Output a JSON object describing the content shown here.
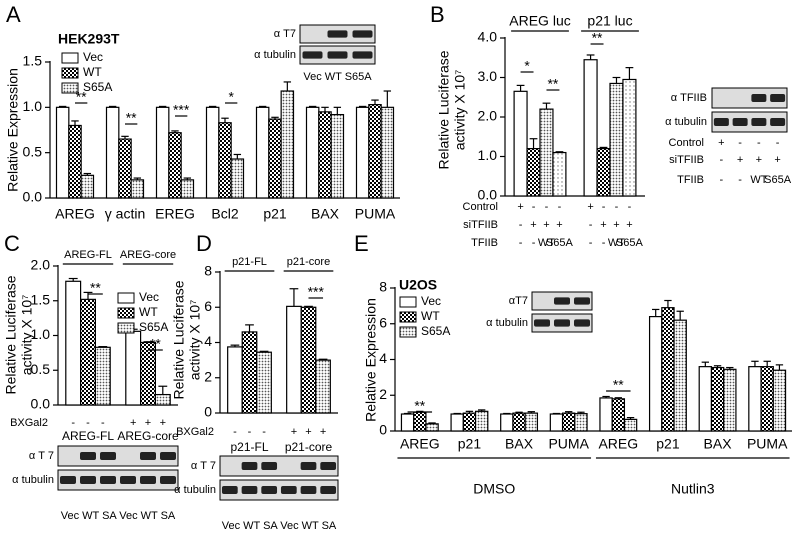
{
  "chart_data": [
    {
      "type": "bar",
      "letter": "A",
      "cell_line": "HEK293T",
      "y_label": [
        "Relative Expression"
      ],
      "categories": [
        "AREG",
        "γ actin",
        "EREG",
        "Bcl2",
        "p21",
        "BAX",
        "PUMA"
      ],
      "series": [
        {
          "name": "Vec",
          "pattern": "none",
          "values": [
            1.0,
            1.0,
            1.0,
            1.0,
            1.0,
            1.0,
            1.0
          ],
          "errors": [
            0.01,
            0.01,
            0.01,
            0.01,
            0.01,
            0.01,
            0.01
          ]
        },
        {
          "name": "WT",
          "pattern": "checker",
          "values": [
            0.8,
            0.65,
            0.72,
            0.83,
            0.87,
            0.95,
            1.03
          ],
          "errors": [
            0.05,
            0.03,
            0.02,
            0.05,
            0.02,
            0.05,
            0.05
          ]
        },
        {
          "name": "S65A",
          "pattern": "dots",
          "values": [
            0.25,
            0.2,
            0.2,
            0.43,
            1.18,
            0.92,
            1.0
          ],
          "errors": [
            0.02,
            0.02,
            0.02,
            0.05,
            0.1,
            0.08,
            0.18
          ]
        }
      ],
      "ylim": [
        0,
        1.5
      ],
      "yticks": [
        {
          "value": 0,
          "label": "0.0"
        },
        0.5,
        {
          "value": 1,
          "label": "1.0"
        },
        1.5
      ],
      "annotations": [
        "**",
        "**",
        "***",
        "*"
      ],
      "blot": {
        "rows": [
          "α T7",
          "α tubulin"
        ],
        "lanes": "Vec WT S65A"
      }
    },
    {
      "type": "bar",
      "letter": "B",
      "y_label": [
        "Relative Luciferase",
        "activity X 10⁷"
      ],
      "categories": [
        "AREG luc",
        "p21 luc"
      ],
      "series": [
        {
          "pattern": "none",
          "values": [
            2.65,
            3.45
          ],
          "errors": [
            0.15,
            0.12
          ]
        },
        {
          "pattern": "checker",
          "values": [
            1.2,
            1.2
          ],
          "errors": [
            0.25,
            0.03
          ]
        },
        {
          "pattern": "dots",
          "values": [
            2.2,
            2.85
          ],
          "errors": [
            0.15,
            0.15
          ]
        },
        {
          "pattern": "sparse",
          "values": [
            1.1,
            2.95
          ],
          "errors": [
            0.02,
            0.3
          ]
        }
      ],
      "ylim": [
        0,
        4
      ],
      "yticks": [
        {
          "value": 0,
          "label": "0.0"
        },
        {
          "value": 1,
          "label": "1.0"
        },
        {
          "value": 2,
          "label": "2.0"
        },
        {
          "value": 3,
          "label": "3.0"
        },
        {
          "value": 4,
          "label": "4.0"
        }
      ],
      "annotations": [
        "*",
        "**",
        "**"
      ],
      "conditions": [
        {
          "label": "Control",
          "marks": [
            "+",
            "-",
            "-",
            "-",
            "+",
            "-",
            "-",
            "-"
          ]
        },
        {
          "label": "siTFIIB",
          "marks": [
            "-",
            "+",
            "+",
            "+",
            "-",
            "+",
            "+",
            "+"
          ]
        },
        {
          "label": "TFIIB",
          "marks": [
            "-",
            "-",
            "WT",
            "S65A",
            "-",
            "-",
            "WT",
            "S65A"
          ]
        }
      ],
      "blot": {
        "rows": [
          "α TFIIB",
          "α tubulin"
        ],
        "conditions": [
          {
            "label": "Control",
            "marks": [
              "+",
              "-",
              "-",
              "-"
            ]
          },
          {
            "label": "siTFIIB",
            "marks": [
              "-",
              "+",
              "+",
              "+"
            ]
          },
          {
            "label": "TFIIB",
            "marks": [
              "-",
              "-",
              "WT",
              "S65A"
            ]
          }
        ]
      }
    },
    {
      "type": "bar",
      "letter": "C",
      "y_label": [
        "Relative Luciferase",
        "activity X 10⁷"
      ],
      "categories": [
        "AREG-FL",
        "AREG-core"
      ],
      "series": [
        {
          "name": "Vec",
          "pattern": "none",
          "values": [
            1.78,
            1.06
          ],
          "errors": [
            0.04,
            0.03
          ]
        },
        {
          "name": "WT",
          "pattern": "checker",
          "values": [
            1.52,
            0.9
          ],
          "errors": [
            0.1,
            0.01
          ]
        },
        {
          "name": "S65A",
          "pattern": "dots",
          "values": [
            0.83,
            0.15
          ],
          "errors": [
            0.01,
            0.12
          ]
        }
      ],
      "ylim": [
        0,
        2
      ],
      "yticks": [
        {
          "value": 0,
          "label": "0.0"
        },
        0.5,
        {
          "value": 1,
          "label": "1.0"
        },
        1.5,
        {
          "value": 2,
          "label": "2.0"
        }
      ],
      "annotations": [
        "**",
        "**"
      ],
      "conditions": [
        {
          "label": "BXGal2",
          "marks": [
            "-",
            "-",
            "-",
            "+",
            "+",
            "+"
          ]
        }
      ],
      "blot": {
        "rows": [
          "α T 7",
          "α tubulin"
        ],
        "lanes": "Vec WT SA Vec WT SA"
      }
    },
    {
      "type": "bar",
      "letter": "D",
      "y_label": [
        "Relative Luciferase",
        "activity X 10⁷"
      ],
      "categories": [
        "p21-FL",
        "p21-core"
      ],
      "series": [
        {
          "pattern": "none",
          "values": [
            3.75,
            6.05
          ],
          "errors": [
            0.1,
            1.0
          ]
        },
        {
          "pattern": "checker",
          "values": [
            4.6,
            6.0
          ],
          "errors": [
            0.4,
            0.05
          ]
        },
        {
          "pattern": "dots",
          "values": [
            3.45,
            3.0
          ],
          "errors": [
            0.05,
            0.05
          ]
        }
      ],
      "ylim": [
        0,
        8
      ],
      "yticks": [
        0,
        2,
        4,
        6,
        8
      ],
      "annotations": [
        "***"
      ],
      "conditions": [
        {
          "label": "BXGal2",
          "marks": [
            "-",
            "-",
            "-",
            "+",
            "+",
            "+"
          ]
        }
      ],
      "blot": {
        "rows": [
          "α T 7",
          "α tubulin"
        ],
        "lanes": "Vec WT SA Vec WT SA"
      }
    },
    {
      "type": "bar",
      "letter": "E",
      "cell_line": "U2OS",
      "y_label": [
        "Relative Expression"
      ],
      "categories": [
        "AREG",
        "p21",
        "BAX",
        "PUMA",
        "AREG",
        "p21",
        "BAX",
        "PUMA"
      ],
      "groups": [
        "DMSO",
        "Nutlin3"
      ],
      "series": [
        {
          "name": "Vec",
          "pattern": "none",
          "values": [
            0.95,
            0.95,
            0.95,
            0.95,
            1.85,
            6.4,
            3.6,
            3.6
          ],
          "errors": [
            0.03,
            0.03,
            0.03,
            0.03,
            0.08,
            0.4,
            0.25,
            0.3
          ]
        },
        {
          "name": "WT",
          "pattern": "checker",
          "values": [
            1.05,
            1.0,
            1.0,
            1.0,
            1.8,
            6.9,
            3.55,
            3.6
          ],
          "errors": [
            0.05,
            0.1,
            0.05,
            0.08,
            0.06,
            0.4,
            0.1,
            0.3
          ]
        },
        {
          "name": "S65A",
          "pattern": "dots",
          "values": [
            0.4,
            1.1,
            1.0,
            0.97,
            0.65,
            6.2,
            3.45,
            3.4
          ],
          "errors": [
            0.05,
            0.08,
            0.08,
            0.08,
            0.1,
            0.5,
            0.1,
            0.3
          ]
        }
      ],
      "ylim": [
        0,
        8
      ],
      "yticks": [
        0,
        2,
        4,
        6,
        8
      ],
      "annotations": [
        "**",
        "**"
      ],
      "blot": {
        "rows": [
          "αT7",
          "α tubulin"
        ]
      }
    }
  ]
}
